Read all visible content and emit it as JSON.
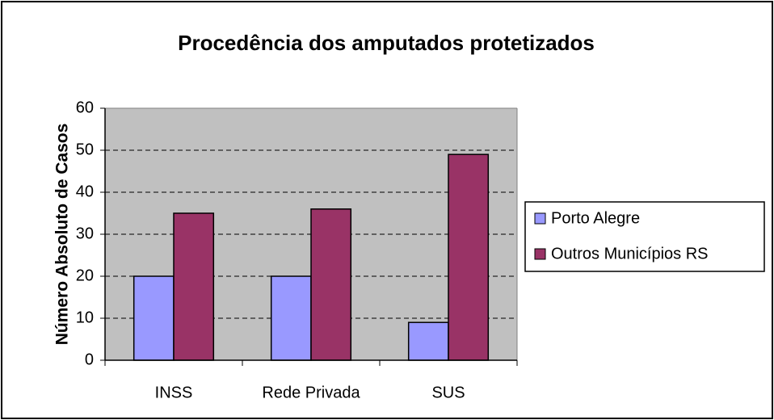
{
  "chart_data": {
    "type": "bar",
    "title": "Procedência dos amputados protetizados",
    "y_label": "Número Absoluto de Casos",
    "categories": [
      "INSS",
      "Rede Privada",
      "SUS"
    ],
    "series": [
      {
        "name": "Porto Alegre",
        "color": "#9999ff",
        "values": [
          20,
          20,
          9
        ]
      },
      {
        "name": "Outros Municípios RS",
        "color": "#993366",
        "values": [
          35,
          36,
          49
        ]
      }
    ],
    "ylim": [
      0,
      60
    ],
    "yticks": [
      0,
      10,
      20,
      30,
      40,
      50,
      60
    ],
    "grid": true,
    "legend": "right"
  }
}
